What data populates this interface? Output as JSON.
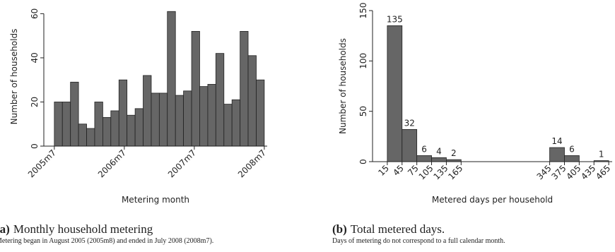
{
  "chart_data": [
    {
      "type": "histogram",
      "caption_label": "(a)",
      "caption": "Monthly household metering",
      "note": "Metering began in August 2005 (2005m8) and ended in July 2008 (2008m7).",
      "x_label": "Metering month",
      "y_label": "Number of households",
      "bins": [
        0,
        1.38,
        2.77,
        4.15,
        5.54,
        6.92,
        8.31,
        9.69,
        11.08,
        12.46,
        13.85,
        15.23,
        16.62,
        18,
        19.38,
        20.77,
        22.15,
        23.54,
        24.92,
        26.31,
        27.69,
        29.08,
        30.46,
        31.85,
        33.23,
        34.62,
        36
      ],
      "values": [
        20,
        20,
        29,
        10,
        8,
        20,
        13,
        16,
        30,
        14,
        17,
        32,
        24,
        24,
        61,
        23,
        25,
        52,
        27,
        28,
        42,
        19,
        21,
        52,
        41,
        30
      ],
      "color": "#666666",
      "xlim": [
        -1.8,
        36.5
      ],
      "xticks": [
        {
          "value": 0,
          "label": "2005m7"
        },
        {
          "value": 12,
          "label": "2006m7"
        },
        {
          "value": 24,
          "label": "2007m7"
        },
        {
          "value": 36,
          "label": "2008m7"
        }
      ],
      "ylim": [
        0,
        63
      ],
      "yticks": [
        0,
        20,
        40,
        60
      ],
      "show_values": false
    },
    {
      "type": "histogram",
      "caption_label": "(b)",
      "caption": "Total metered days.",
      "note": "Days of metering do not correspond to a full calendar month.",
      "x_label": "Metered days per household",
      "y_label": "Number of households",
      "bins": [
        15,
        45,
        75,
        105,
        135,
        165,
        195,
        225,
        255,
        285,
        315,
        345,
        375,
        405,
        435,
        465
      ],
      "values": [
        135,
        32,
        6,
        4,
        2,
        0,
        0,
        0,
        0,
        0,
        0,
        14,
        6,
        0,
        1
      ],
      "color": "#666666",
      "xlim": [
        -15,
        472
      ],
      "xticks": [
        15,
        45,
        75,
        105,
        135,
        165,
        345,
        375,
        405,
        435,
        465
      ],
      "ylim": [
        0,
        150
      ],
      "yticks": [
        0,
        50,
        100,
        150
      ],
      "show_values": true
    }
  ]
}
